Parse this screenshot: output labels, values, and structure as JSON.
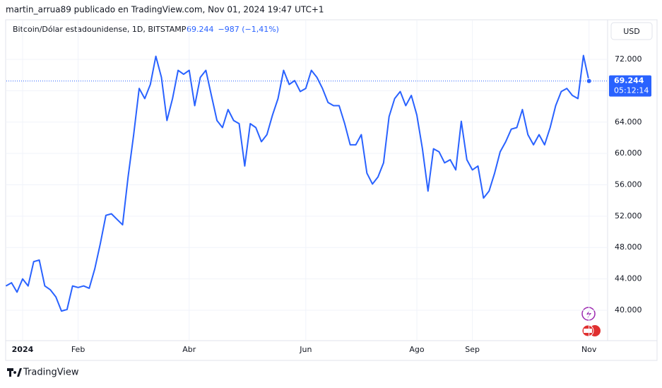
{
  "chart_data": {
    "type": "line",
    "publisher": "martin_arrua89 publicado en TradingView.com, Nov 01, 2024 19:47 UTC+1",
    "title": "Bitcoin/Dólar estadounidense, 1D, BITSTAMP",
    "last": "69.244",
    "change": "−987 (−1,41%)",
    "currency": "USD",
    "price_label": "69.244",
    "countdown": "05:12:14",
    "brand": "TradingView",
    "categories": [
      null,
      null,
      null,
      "2024",
      null,
      null,
      null,
      null,
      null,
      null,
      null,
      null,
      null,
      "Feb",
      null,
      null,
      null,
      null,
      null,
      null,
      null,
      null,
      null,
      null,
      null,
      null,
      null,
      null,
      null,
      null,
      null,
      null,
      null,
      "Abr",
      null,
      null,
      null,
      null,
      null,
      null,
      null,
      null,
      null,
      null,
      null,
      null,
      null,
      null,
      null,
      null,
      null,
      null,
      null,
      null,
      "Jun",
      null,
      null,
      null,
      null,
      null,
      null,
      null,
      null,
      null,
      null,
      null,
      null,
      null,
      null,
      null,
      null,
      null,
      null,
      null,
      "Ago",
      null,
      null,
      null,
      null,
      null,
      null,
      null,
      null,
      null,
      "Sep",
      null,
      null,
      null,
      null,
      null,
      null,
      null,
      null,
      null,
      null,
      null,
      null,
      null,
      null,
      null,
      null,
      null,
      null,
      null,
      null,
      "Nov"
    ],
    "values": [
      43100,
      43500,
      42300,
      44000,
      43100,
      46200,
      46400,
      43100,
      42600,
      41700,
      39900,
      40100,
      43100,
      42900,
      43100,
      42800,
      45300,
      48500,
      52100,
      52300,
      51600,
      50900,
      57000,
      62400,
      68300,
      67000,
      68800,
      72400,
      69700,
      64200,
      67000,
      70600,
      70100,
      70600,
      66100,
      69700,
      70600,
      67400,
      64200,
      63300,
      65600,
      64200,
      63800,
      58400,
      63800,
      63300,
      61500,
      62400,
      64900,
      67000,
      70600,
      68800,
      69300,
      67900,
      68300,
      70600,
      69700,
      68300,
      66500,
      66100,
      66100,
      63800,
      61100,
      61100,
      62400,
      57500,
      56100,
      57000,
      58800,
      64700,
      67000,
      67900,
      66100,
      67400,
      64900,
      60600,
      55200,
      60600,
      60200,
      58800,
      59200,
      57900,
      64100,
      59200,
      57900,
      58400,
      54300,
      55200,
      57500,
      60200,
      61500,
      63100,
      63300,
      65600,
      62400,
      61100,
      62400,
      61100,
      63300,
      66100,
      67900,
      68300,
      67400,
      67000,
      72500,
      69244
    ],
    "color": "#2962ff",
    "ylim": [
      36300,
      76870
    ],
    "yticks": [
      {
        "value": 40000,
        "label": "40.000"
      },
      {
        "value": 44000,
        "label": "44.000"
      },
      {
        "value": 48000,
        "label": "48.000"
      },
      {
        "value": 52000,
        "label": "52.000"
      },
      {
        "value": 56000,
        "label": "56.000"
      },
      {
        "value": 60000,
        "label": "60.000"
      },
      {
        "value": 64000,
        "label": "64.000"
      },
      {
        "value": 68000,
        "label": "68.000"
      },
      {
        "value": 72000,
        "label": "72.000"
      }
    ],
    "grid": true
  }
}
